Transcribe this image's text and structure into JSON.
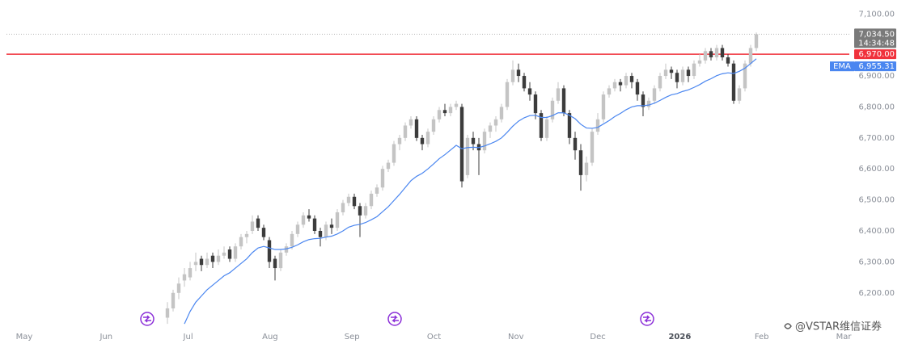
{
  "chart_data": {
    "type": "candlestick",
    "ylim": [
      6090,
      7145
    ],
    "yticks": [
      {
        "value": 6200,
        "label": "6,200.00"
      },
      {
        "value": 6300,
        "label": "6,300.00"
      },
      {
        "value": 6400,
        "label": "6,400.00"
      },
      {
        "value": 6500,
        "label": "6,500.00"
      },
      {
        "value": 6600,
        "label": "6,600.00"
      },
      {
        "value": 6700,
        "label": "6,700.00"
      },
      {
        "value": 6800,
        "label": "6,800.00"
      },
      {
        "value": 6900,
        "label": "6,900.00"
      },
      {
        "value": 7000,
        "label": "7,000.00"
      },
      {
        "value": 7100,
        "label": "7,100.00"
      }
    ],
    "xticks": [
      "May",
      "Jun",
      "Jul",
      "Aug",
      "Sep",
      "Oct",
      "Nov",
      "Dec",
      "2026",
      "Feb",
      "Mar"
    ],
    "up_color": "#c4c4c4",
    "down_color": "#3c3c3c",
    "candles": [
      [
        6120,
        6170,
        6100,
        6150
      ],
      [
        6150,
        6210,
        6140,
        6200
      ],
      [
        6200,
        6250,
        6180,
        6230
      ],
      [
        6240,
        6280,
        6220,
        6260
      ],
      [
        6250,
        6300,
        6240,
        6280
      ],
      [
        6290,
        6330,
        6270,
        6300
      ],
      [
        6310,
        6320,
        6270,
        6290
      ],
      [
        6290,
        6330,
        6280,
        6310
      ],
      [
        6320,
        6330,
        6280,
        6300
      ],
      [
        6300,
        6340,
        6290,
        6320
      ],
      [
        6320,
        6350,
        6310,
        6330
      ],
      [
        6340,
        6350,
        6300,
        6310
      ],
      [
        6310,
        6360,
        6300,
        6350
      ],
      [
        6350,
        6390,
        6340,
        6380
      ],
      [
        6380,
        6400,
        6360,
        6390
      ],
      [
        6400,
        6450,
        6390,
        6430
      ],
      [
        6440,
        6450,
        6400,
        6410
      ],
      [
        6410,
        6420,
        6370,
        6380
      ],
      [
        6370,
        6380,
        6280,
        6300
      ],
      [
        6310,
        6320,
        6240,
        6280
      ],
      [
        6280,
        6340,
        6270,
        6330
      ],
      [
        6330,
        6360,
        6320,
        6350
      ],
      [
        6350,
        6400,
        6340,
        6390
      ],
      [
        6390,
        6430,
        6380,
        6420
      ],
      [
        6420,
        6460,
        6410,
        6450
      ],
      [
        6450,
        6470,
        6430,
        6440
      ],
      [
        6440,
        6450,
        6390,
        6400
      ],
      [
        6400,
        6410,
        6350,
        6380
      ],
      [
        6380,
        6430,
        6370,
        6420
      ],
      [
        6420,
        6440,
        6390,
        6410
      ],
      [
        6410,
        6470,
        6400,
        6460
      ],
      [
        6460,
        6500,
        6450,
        6490
      ],
      [
        6490,
        6520,
        6480,
        6510
      ],
      [
        6510,
        6520,
        6470,
        6480
      ],
      [
        6480,
        6490,
        6380,
        6450
      ],
      [
        6450,
        6490,
        6440,
        6480
      ],
      [
        6480,
        6530,
        6470,
        6520
      ],
      [
        6520,
        6550,
        6510,
        6540
      ],
      [
        6540,
        6610,
        6530,
        6600
      ],
      [
        6600,
        6630,
        6590,
        6620
      ],
      [
        6620,
        6690,
        6610,
        6680
      ],
      [
        6680,
        6710,
        6660,
        6700
      ],
      [
        6700,
        6750,
        6690,
        6740
      ],
      [
        6740,
        6770,
        6730,
        6760
      ],
      [
        6760,
        6770,
        6690,
        6700
      ],
      [
        6700,
        6710,
        6660,
        6680
      ],
      [
        6680,
        6730,
        6670,
        6720
      ],
      [
        6720,
        6770,
        6710,
        6760
      ],
      [
        6760,
        6800,
        6750,
        6790
      ],
      [
        6790,
        6810,
        6770,
        6780
      ],
      [
        6780,
        6810,
        6770,
        6800
      ],
      [
        6800,
        6820,
        6790,
        6810
      ],
      [
        6800,
        6810,
        6540,
        6560
      ],
      [
        6580,
        6710,
        6570,
        6700
      ],
      [
        6700,
        6720,
        6660,
        6680
      ],
      [
        6680,
        6700,
        6580,
        6660
      ],
      [
        6660,
        6730,
        6650,
        6720
      ],
      [
        6720,
        6750,
        6700,
        6740
      ],
      [
        6740,
        6770,
        6720,
        6760
      ],
      [
        6760,
        6810,
        6750,
        6800
      ],
      [
        6800,
        6890,
        6790,
        6880
      ],
      [
        6880,
        6950,
        6870,
        6920
      ],
      [
        6920,
        6940,
        6880,
        6900
      ],
      [
        6900,
        6910,
        6850,
        6860
      ],
      [
        6860,
        6880,
        6820,
        6840
      ],
      [
        6840,
        6850,
        6760,
        6780
      ],
      [
        6780,
        6790,
        6690,
        6700
      ],
      [
        6700,
        6770,
        6690,
        6760
      ],
      [
        6760,
        6830,
        6750,
        6820
      ],
      [
        6820,
        6880,
        6810,
        6860
      ],
      [
        6860,
        6870,
        6770,
        6780
      ],
      [
        6780,
        6790,
        6680,
        6700
      ],
      [
        6700,
        6720,
        6630,
        6660
      ],
      [
        6660,
        6680,
        6530,
        6580
      ],
      [
        6580,
        6640,
        6560,
        6620
      ],
      [
        6620,
        6730,
        6610,
        6720
      ],
      [
        6720,
        6780,
        6710,
        6760
      ],
      [
        6760,
        6850,
        6750,
        6840
      ],
      [
        6840,
        6870,
        6830,
        6860
      ],
      [
        6860,
        6890,
        6850,
        6880
      ],
      [
        6880,
        6890,
        6850,
        6870
      ],
      [
        6870,
        6910,
        6860,
        6900
      ],
      [
        6900,
        6910,
        6860,
        6880
      ],
      [
        6880,
        6890,
        6820,
        6840
      ],
      [
        6840,
        6850,
        6770,
        6800
      ],
      [
        6800,
        6830,
        6790,
        6820
      ],
      [
        6820,
        6870,
        6810,
        6860
      ],
      [
        6860,
        6910,
        6850,
        6900
      ],
      [
        6900,
        6940,
        6890,
        6920
      ],
      [
        6920,
        6930,
        6890,
        6910
      ],
      [
        6910,
        6920,
        6860,
        6880
      ],
      [
        6880,
        6930,
        6870,
        6920
      ],
      [
        6920,
        6930,
        6880,
        6900
      ],
      [
        6900,
        6950,
        6890,
        6940
      ],
      [
        6940,
        6970,
        6930,
        6950
      ],
      [
        6950,
        6990,
        6940,
        6980
      ],
      [
        6980,
        6990,
        6950,
        6960
      ],
      [
        6960,
        7000,
        6950,
        6990
      ],
      [
        6990,
        7000,
        6950,
        6960
      ],
      [
        6960,
        6970,
        6930,
        6940
      ],
      [
        6940,
        6950,
        6810,
        6820
      ],
      [
        6820,
        6870,
        6810,
        6860
      ],
      [
        6860,
        6950,
        6850,
        6940
      ],
      [
        6940,
        7000,
        6930,
        6990
      ],
      [
        6990,
        7040,
        6980,
        7034.5
      ]
    ],
    "ema": {
      "name": "EMA",
      "color": "#4a86f0",
      "last_label": "6,955.31",
      "values": [
        null,
        null,
        null,
        6100,
        6140,
        6170,
        6190,
        6210,
        6225,
        6240,
        6255,
        6265,
        6280,
        6295,
        6310,
        6330,
        6345,
        6350,
        6345,
        6340,
        6340,
        6342,
        6347,
        6355,
        6365,
        6372,
        6375,
        6376,
        6380,
        6383,
        6390,
        6400,
        6412,
        6418,
        6421,
        6427,
        6436,
        6446,
        6462,
        6478,
        6498,
        6518,
        6540,
        6562,
        6576,
        6586,
        6600,
        6616,
        6633,
        6646,
        6661,
        6676,
        6665,
        6669,
        6670,
        6669,
        6674,
        6681,
        6689,
        6700,
        6718,
        6738,
        6754,
        6765,
        6772,
        6773,
        6766,
        6766,
        6772,
        6781,
        6781,
        6773,
        6762,
        6744,
        6732,
        6731,
        6734,
        6745,
        6756,
        6769,
        6779,
        6791,
        6800,
        6804,
        6804,
        6806,
        6812,
        6821,
        6831,
        6839,
        6843,
        6850,
        6855,
        6863,
        6872,
        6883,
        6891,
        6901,
        6907,
        6910,
        6908,
        6915,
        6925,
        6940,
        6955.31
      ]
    },
    "last_price": {
      "value": 7034.5,
      "label": "7,034.50",
      "time": "14:34:48",
      "color": "#7a7a7a"
    },
    "price_line": {
      "value": 6970,
      "label": "6,970.00",
      "color": "#f0323c"
    },
    "watermark": "@VSTAR维信证券"
  }
}
